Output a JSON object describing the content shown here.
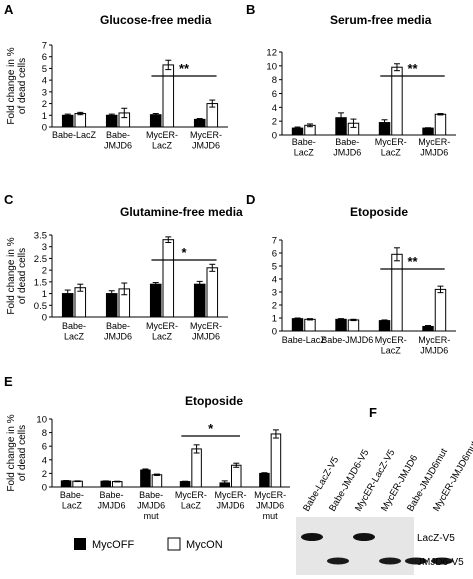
{
  "y_axis_label_lines": [
    "Fold change in %",
    "of dead cells"
  ],
  "series_names": [
    "MycOFF",
    "MycON"
  ],
  "colors": {
    "MycOFF": "#000000",
    "MycON": "#ffffff",
    "axis": "#000000"
  },
  "chart_data": [
    {
      "panel": "A",
      "title": "Glucose-free media",
      "type": "bar",
      "ylim": [
        0,
        7
      ],
      "yticks": [
        0,
        1,
        2,
        3,
        4,
        5,
        6,
        7
      ],
      "categories": [
        "Babe-LacZ",
        "Babe-\nJMJD6",
        "MycER-\nLacZ",
        "MycER-\nJMJD6"
      ],
      "series": [
        {
          "name": "MycOFF",
          "values": [
            1.0,
            1.0,
            1.05,
            0.65
          ],
          "errors": [
            0.1,
            0.1,
            0.1,
            0.07
          ]
        },
        {
          "name": "MycON",
          "values": [
            1.15,
            1.2,
            5.3,
            2.0
          ],
          "errors": [
            0.1,
            0.4,
            0.4,
            0.3
          ]
        }
      ],
      "significance": {
        "label": "**",
        "from": 2,
        "to": 3
      }
    },
    {
      "panel": "B",
      "title": "Serum-free media",
      "type": "bar",
      "ylim": [
        0,
        12
      ],
      "yticks": [
        0,
        2,
        4,
        6,
        8,
        10,
        12
      ],
      "categories": [
        "Babe-\nLacZ",
        "Babe-\nJMJD6",
        "MycER-\nLacZ",
        "MycER-\nJMJD6"
      ],
      "series": [
        {
          "name": "MycOFF",
          "values": [
            1.0,
            2.5,
            1.8,
            1.0
          ],
          "errors": [
            0.15,
            0.7,
            0.4,
            0.05
          ]
        },
        {
          "name": "MycON",
          "values": [
            1.4,
            1.7,
            9.8,
            3.0
          ],
          "errors": [
            0.2,
            0.6,
            0.5,
            0.1
          ]
        }
      ],
      "significance": {
        "label": "**",
        "from": 2,
        "to": 3
      }
    },
    {
      "panel": "C",
      "title": "Glutamine-free media",
      "type": "bar",
      "ylim": [
        0,
        3.5
      ],
      "yticks": [
        0,
        0.5,
        1,
        1.5,
        2,
        2.5,
        3,
        3.5
      ],
      "categories": [
        "Babe-\nLacZ",
        "Babe-\nJMJD6",
        "MycER-\nLacZ",
        "MycER-\nJMJD6"
      ],
      "series": [
        {
          "name": "MycOFF",
          "values": [
            1.0,
            1.0,
            1.4,
            1.4
          ],
          "errors": [
            0.15,
            0.12,
            0.07,
            0.12
          ]
        },
        {
          "name": "MycON",
          "values": [
            1.25,
            1.2,
            3.3,
            2.1
          ],
          "errors": [
            0.15,
            0.25,
            0.12,
            0.15
          ]
        }
      ],
      "significance": {
        "label": "*",
        "from": 2,
        "to": 3
      }
    },
    {
      "panel": "D",
      "title": "Etoposide",
      "type": "bar",
      "ylim": [
        0,
        7
      ],
      "yticks": [
        0,
        1,
        2,
        3,
        4,
        5,
        6,
        7
      ],
      "categories": [
        "Babe-LacZ",
        "Babe-JMJD6",
        "MycER-\nLacZ",
        "MycER-\nJMJD6"
      ],
      "series": [
        {
          "name": "MycOFF",
          "values": [
            0.95,
            0.9,
            0.8,
            0.35
          ],
          "errors": [
            0.05,
            0.05,
            0.05,
            0.07
          ]
        },
        {
          "name": "MycON",
          "values": [
            0.9,
            0.85,
            5.9,
            3.2
          ],
          "errors": [
            0.05,
            0.05,
            0.5,
            0.25
          ]
        }
      ],
      "significance": {
        "label": "**",
        "from": 2,
        "to": 3
      }
    },
    {
      "panel": "E",
      "title": "Etoposide",
      "type": "bar",
      "ylim": [
        0,
        10
      ],
      "yticks": [
        0,
        2,
        4,
        6,
        8,
        10
      ],
      "categories": [
        "Babe-\nLacZ",
        "Babe-\nJMJD6",
        "Babe-\nJMJD6\nmut",
        "MycER-\nLacZ",
        "MycER-\nJMJD6",
        "MycER-\nJMJD6\nmut"
      ],
      "series": [
        {
          "name": "MycOFF",
          "values": [
            0.9,
            0.85,
            2.5,
            0.8,
            0.6,
            2.0
          ],
          "errors": [
            0.05,
            0.05,
            0.15,
            0.05,
            0.3,
            0.1
          ]
        },
        {
          "name": "MycON",
          "values": [
            0.85,
            0.8,
            1.8,
            5.6,
            3.2,
            7.8
          ],
          "errors": [
            0.05,
            0.05,
            0.1,
            0.6,
            0.3,
            0.6
          ]
        }
      ],
      "significance": {
        "label": "*",
        "from": 3,
        "to": 4
      }
    }
  ],
  "blot": {
    "panel": "F",
    "lanes": [
      "Babe-LacZ-V5",
      "Babe-JMJD6-V5",
      "MycER-LacZ-V5",
      "MycER-JMJD6",
      "Babe-JMJD6mut",
      "MycER-JMJD6mut"
    ],
    "band_labels": [
      "LacZ-V5",
      "JMJD6-V5"
    ],
    "lacz_lanes": [
      0,
      2
    ],
    "jmjd6_lanes": [
      1,
      3,
      4,
      5
    ]
  }
}
